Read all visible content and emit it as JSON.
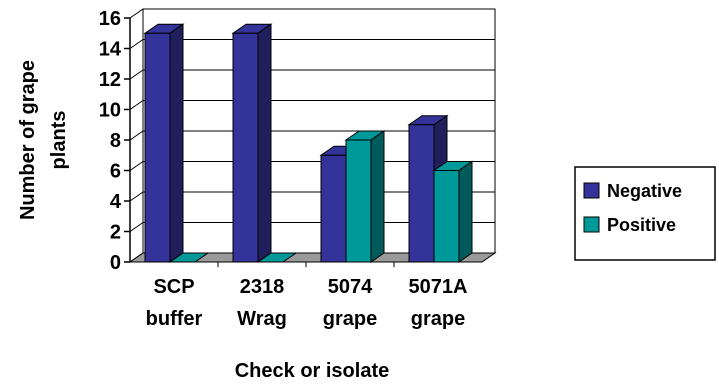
{
  "chart_data": {
    "type": "bar",
    "variant": "3d-clustered",
    "categories": [
      [
        "SCP",
        "buffer"
      ],
      [
        "2318",
        "Wrag"
      ],
      [
        "5074",
        "grape"
      ],
      [
        "5071A",
        "grape"
      ]
    ],
    "series": [
      {
        "name": "Negative",
        "color": "#333399",
        "values": [
          15,
          15,
          7,
          9
        ]
      },
      {
        "name": "Positive",
        "color": "#009999",
        "values": [
          0,
          0,
          8,
          6
        ]
      }
    ],
    "xlabel": "Check or isolate",
    "ylabel": [
      "Number of grape",
      "plants"
    ],
    "ylim": [
      0,
      16
    ],
    "yticks": [
      0,
      2,
      4,
      6,
      8,
      10,
      12,
      14,
      16
    ],
    "grid": true,
    "legend": "right"
  }
}
